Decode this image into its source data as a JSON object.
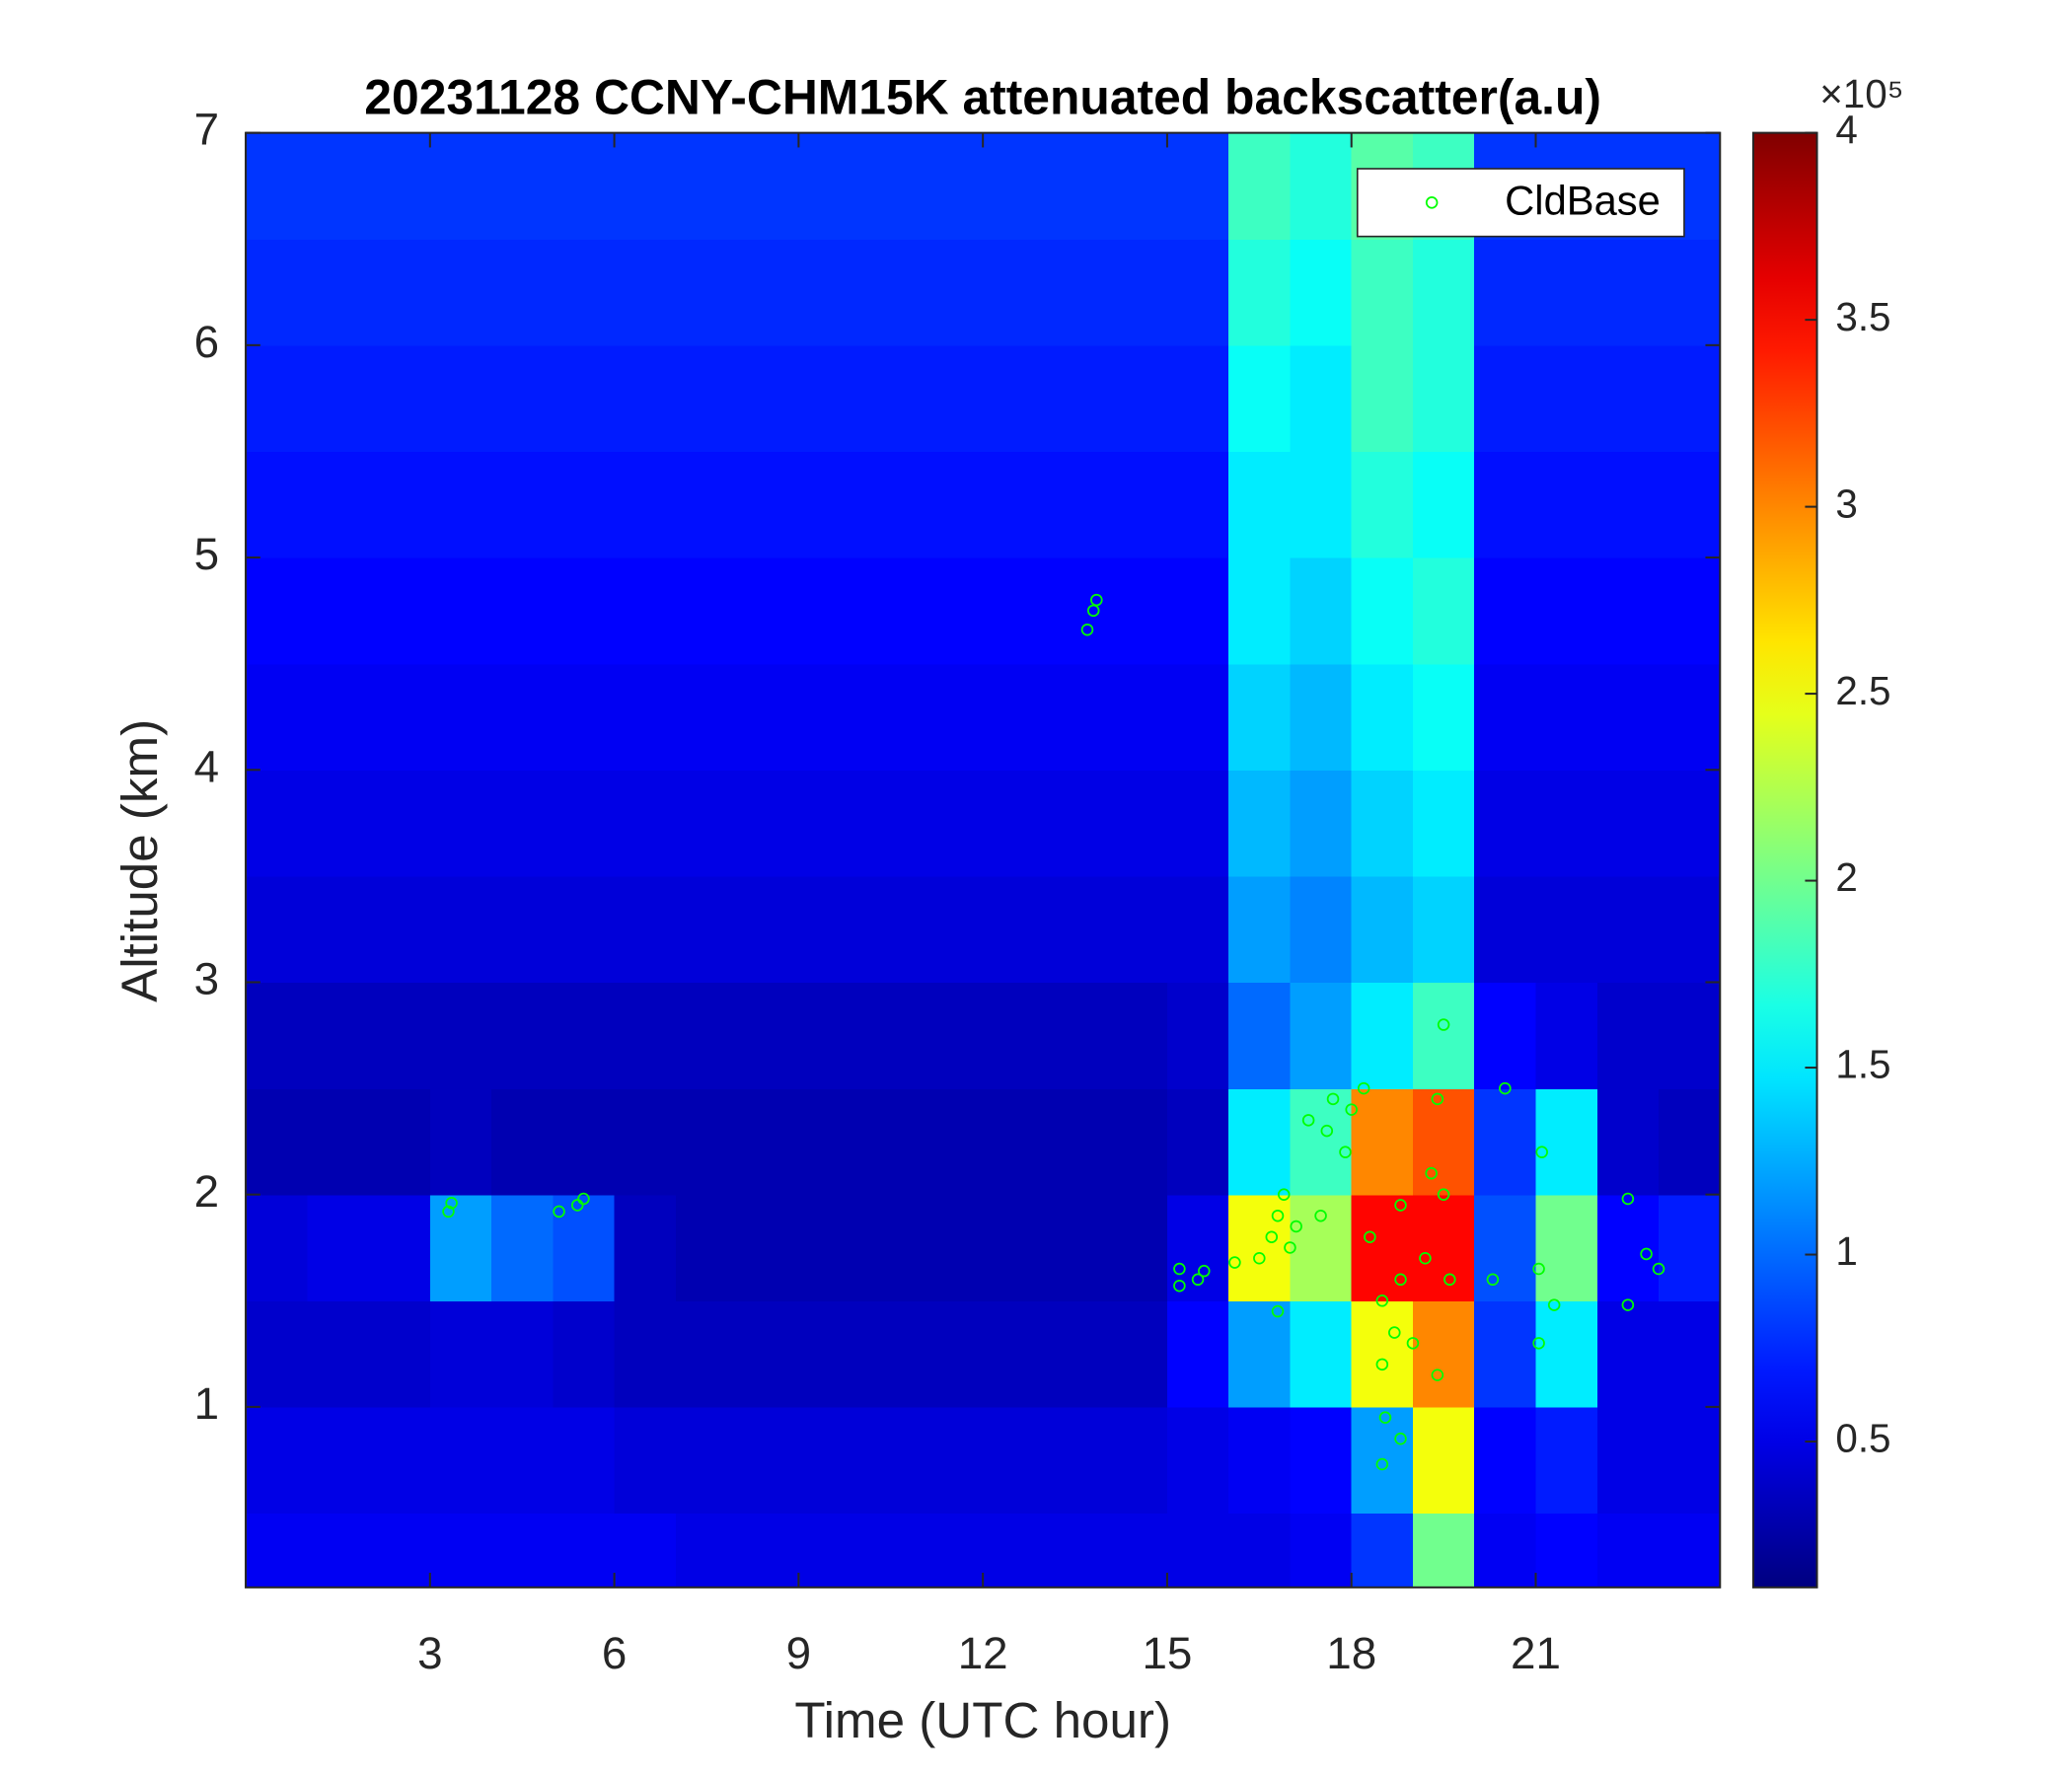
{
  "chart_data": {
    "type": "heatmap",
    "title": "20231128 CCNY-CHM15K attenuated backscatter(a.u)",
    "xlabel": "Time (UTC hour)",
    "ylabel": "Altitude (km)",
    "xlim": [
      0,
      24
    ],
    "ylim": [
      0.15,
      7
    ],
    "xticks": [
      3,
      6,
      9,
      12,
      15,
      18,
      21
    ],
    "yticks": [
      1,
      2,
      3,
      4,
      5,
      6,
      7
    ],
    "colormap": "jet",
    "clim": [
      0.11,
      4
    ],
    "cticks": [
      0.5,
      1,
      1.5,
      2,
      2.5,
      3,
      3.5,
      4
    ],
    "colorbar_exponent_label": "×10⁵",
    "x_edges": [
      0,
      1,
      2,
      3,
      4,
      5,
      6,
      7,
      8,
      9,
      10,
      11,
      12,
      13,
      14,
      15,
      16,
      17,
      18,
      19,
      20,
      21,
      22,
      23,
      24
    ],
    "y_edges": [
      0.15,
      0.5,
      1,
      1.5,
      2,
      2.5,
      3,
      3.5,
      4,
      4.5,
      5,
      5.5,
      6,
      6.5,
      7
    ],
    "z": [
      [
        0.55,
        0.55,
        0.55,
        0.55,
        0.55,
        0.55,
        0.55,
        0.5,
        0.5,
        0.5,
        0.5,
        0.5,
        0.5,
        0.5,
        0.5,
        0.5,
        0.5,
        0.55,
        0.8,
        2.0,
        0.55,
        0.6,
        0.55,
        0.55
      ],
      [
        0.5,
        0.5,
        0.5,
        0.5,
        0.5,
        0.5,
        0.45,
        0.45,
        0.45,
        0.45,
        0.45,
        0.45,
        0.45,
        0.45,
        0.45,
        0.5,
        0.55,
        0.6,
        1.2,
        2.5,
        0.6,
        0.7,
        0.5,
        0.5
      ],
      [
        0.4,
        0.4,
        0.4,
        0.45,
        0.45,
        0.4,
        0.35,
        0.35,
        0.35,
        0.35,
        0.35,
        0.35,
        0.35,
        0.35,
        0.35,
        0.6,
        1.2,
        1.5,
        2.5,
        3.0,
        0.8,
        1.5,
        0.5,
        0.5
      ],
      [
        0.45,
        0.5,
        0.5,
        1.2,
        1.0,
        0.9,
        0.35,
        0.3,
        0.3,
        0.3,
        0.3,
        0.3,
        0.3,
        0.3,
        0.3,
        0.5,
        2.5,
        2.2,
        3.5,
        3.5,
        0.9,
        2.0,
        0.6,
        0.7
      ],
      [
        0.3,
        0.3,
        0.3,
        0.35,
        0.3,
        0.3,
        0.3,
        0.3,
        0.3,
        0.3,
        0.3,
        0.3,
        0.3,
        0.3,
        0.3,
        0.35,
        1.5,
        1.8,
        3.0,
        3.2,
        0.8,
        1.5,
        0.4,
        0.35
      ],
      [
        0.35,
        0.35,
        0.35,
        0.35,
        0.35,
        0.35,
        0.35,
        0.35,
        0.35,
        0.35,
        0.35,
        0.35,
        0.35,
        0.35,
        0.35,
        0.4,
        1.0,
        1.2,
        1.5,
        1.8,
        0.6,
        0.5,
        0.4,
        0.4
      ],
      [
        0.45,
        0.45,
        0.45,
        0.45,
        0.45,
        0.45,
        0.45,
        0.45,
        0.45,
        0.45,
        0.45,
        0.45,
        0.45,
        0.45,
        0.45,
        0.45,
        1.2,
        1.1,
        1.3,
        1.4,
        0.45,
        0.45,
        0.45,
        0.45
      ],
      [
        0.5,
        0.5,
        0.5,
        0.5,
        0.5,
        0.5,
        0.5,
        0.5,
        0.5,
        0.5,
        0.5,
        0.5,
        0.5,
        0.5,
        0.5,
        0.5,
        1.3,
        1.2,
        1.4,
        1.5,
        0.5,
        0.5,
        0.5,
        0.5
      ],
      [
        0.55,
        0.55,
        0.55,
        0.55,
        0.55,
        0.55,
        0.55,
        0.55,
        0.55,
        0.55,
        0.55,
        0.55,
        0.55,
        0.55,
        0.55,
        0.55,
        1.4,
        1.3,
        1.5,
        1.6,
        0.55,
        0.55,
        0.55,
        0.55
      ],
      [
        0.6,
        0.6,
        0.6,
        0.6,
        0.6,
        0.6,
        0.6,
        0.6,
        0.6,
        0.6,
        0.6,
        0.6,
        0.6,
        0.6,
        0.6,
        0.6,
        1.5,
        1.4,
        1.6,
        1.7,
        0.6,
        0.6,
        0.6,
        0.6
      ],
      [
        0.65,
        0.65,
        0.65,
        0.65,
        0.65,
        0.65,
        0.65,
        0.65,
        0.65,
        0.65,
        0.65,
        0.65,
        0.65,
        0.65,
        0.65,
        0.65,
        1.5,
        1.5,
        1.7,
        1.6,
        0.65,
        0.65,
        0.65,
        0.65
      ],
      [
        0.7,
        0.7,
        0.7,
        0.7,
        0.7,
        0.7,
        0.7,
        0.7,
        0.7,
        0.7,
        0.7,
        0.7,
        0.7,
        0.7,
        0.7,
        0.7,
        1.6,
        1.5,
        1.8,
        1.7,
        0.7,
        0.7,
        0.7,
        0.7
      ],
      [
        0.75,
        0.75,
        0.75,
        0.75,
        0.75,
        0.75,
        0.75,
        0.75,
        0.75,
        0.75,
        0.75,
        0.75,
        0.75,
        0.75,
        0.75,
        0.75,
        1.7,
        1.6,
        1.8,
        1.7,
        0.75,
        0.75,
        0.75,
        0.75
      ],
      [
        0.8,
        0.8,
        0.8,
        0.8,
        0.8,
        0.8,
        0.8,
        0.8,
        0.8,
        0.8,
        0.8,
        0.8,
        0.8,
        0.8,
        0.8,
        0.8,
        1.8,
        1.7,
        1.9,
        1.8,
        0.8,
        0.8,
        0.8,
        0.8
      ]
    ],
    "legend": "northeast",
    "series": [
      {
        "name": "CldBase",
        "color": "#00ff00",
        "x": [
          3.3,
          3.35,
          5.1,
          5.4,
          5.5,
          13.7,
          13.8,
          13.85,
          15.2,
          15.2,
          15.5,
          15.6,
          16.1,
          16.5,
          16.7,
          16.8,
          16.9,
          17.0,
          17.1,
          16.8,
          17.3,
          17.5,
          17.6,
          17.7,
          17.9,
          18.0,
          18.2,
          18.3,
          18.5,
          18.5,
          18.55,
          18.5,
          18.7,
          18.8,
          18.8,
          18.8,
          19.0,
          19.2,
          19.3,
          19.4,
          19.5,
          19.5,
          19.6,
          19.4,
          20.3,
          20.5,
          21.05,
          21.05,
          21.1,
          21.3,
          22.5,
          22.5,
          22.8,
          23.0
        ],
        "y": [
          1.92,
          1.96,
          1.92,
          1.95,
          1.98,
          4.66,
          4.75,
          4.8,
          1.65,
          1.57,
          1.6,
          1.64,
          1.68,
          1.7,
          1.8,
          1.9,
          2.0,
          1.75,
          1.85,
          1.45,
          2.35,
          1.9,
          2.3,
          2.45,
          2.2,
          2.4,
          2.5,
          1.8,
          1.5,
          1.2,
          0.95,
          0.73,
          1.35,
          0.85,
          1.6,
          1.95,
          1.3,
          1.7,
          2.1,
          2.45,
          2.8,
          2.0,
          1.6,
          1.15,
          1.6,
          2.5,
          1.3,
          1.65,
          2.2,
          1.48,
          1.48,
          1.98,
          1.72,
          1.65
        ]
      }
    ]
  }
}
